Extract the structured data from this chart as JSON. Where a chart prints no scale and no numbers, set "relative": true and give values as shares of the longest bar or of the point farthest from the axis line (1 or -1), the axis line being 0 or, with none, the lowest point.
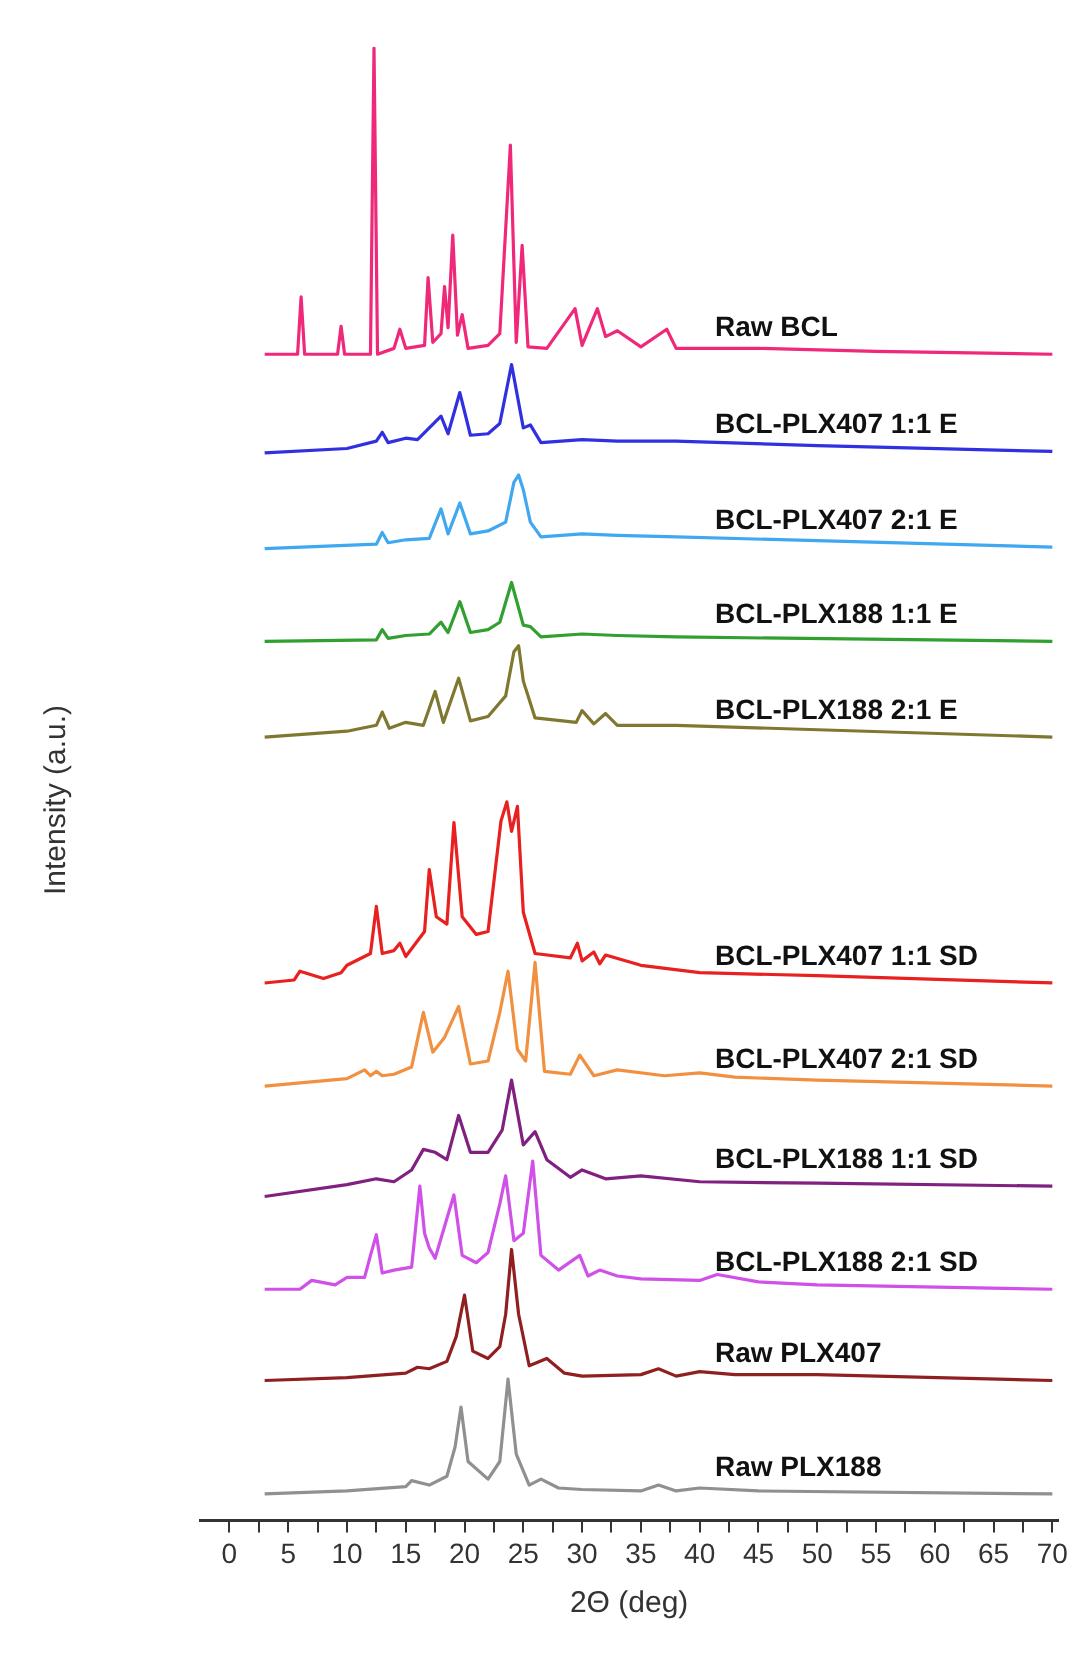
{
  "chart_data": {
    "type": "line",
    "relative": true,
    "xlabel": "2Θ (deg)",
    "ylabel": "Intensity (a.u.)",
    "xlim": [
      -2.5,
      70.5
    ],
    "xticks": [
      0,
      {
        "value": 2.5,
        "label": null
      },
      5,
      {
        "value": 7.5,
        "label": null
      },
      10,
      {
        "value": 12.5,
        "label": null
      },
      15,
      {
        "value": 17.5,
        "label": null
      },
      20,
      {
        "value": 22.5,
        "label": null
      },
      25,
      {
        "value": 27.5,
        "label": null
      },
      30,
      {
        "value": 32.5,
        "label": null
      },
      35,
      {
        "value": 37.5,
        "label": null
      },
      40,
      {
        "value": 42.5,
        "label": null
      },
      45,
      {
        "value": 47.5,
        "label": null
      },
      50,
      {
        "value": 52.5,
        "label": null
      },
      55,
      {
        "value": 57.5,
        "label": null
      },
      60,
      {
        "value": 62.5,
        "label": null
      },
      65,
      {
        "value": 67.5,
        "label": null
      },
      70
    ],
    "marker": "none",
    "line_style": "solid",
    "series": [
      {
        "name": "Raw BCL",
        "color": "#f0287a",
        "x": [
          3,
          5.8,
          6.1,
          6.4,
          9.2,
          9.5,
          9.8,
          12,
          12.3,
          12.6,
          14,
          14.5,
          15,
          16.6,
          16.9,
          17.3,
          18,
          18.3,
          18.6,
          19,
          19.4,
          19.8,
          20.3,
          22,
          23,
          23.9,
          24.4,
          24.9,
          25.4,
          27,
          29.4,
          30,
          31.3,
          32,
          33,
          35,
          37.2,
          38,
          42,
          45,
          55,
          70
        ],
        "values": [
          0.792,
          0.792,
          0.831,
          0.792,
          0.792,
          0.811,
          0.792,
          0.792,
          1.0,
          0.792,
          0.796,
          0.809,
          0.796,
          0.798,
          0.844,
          0.8,
          0.806,
          0.838,
          0.81,
          0.873,
          0.805,
          0.819,
          0.796,
          0.798,
          0.806,
          0.934,
          0.8,
          0.866,
          0.797,
          0.796,
          0.823,
          0.798,
          0.823,
          0.804,
          0.808,
          0.797,
          0.809,
          0.796,
          0.796,
          0.796,
          0.794,
          0.792
        ]
      },
      {
        "name": "BCL-PLX407 1:1 E",
        "color": "#3030e0",
        "x": [
          3,
          10,
          12.5,
          13,
          13.5,
          15,
          16,
          18,
          18.6,
          19.6,
          20.5,
          22,
          23,
          24,
          25,
          25.6,
          26.5,
          30,
          33,
          38,
          50,
          70
        ],
        "values": [
          0.725,
          0.728,
          0.733,
          0.739,
          0.732,
          0.735,
          0.734,
          0.75,
          0.738,
          0.766,
          0.737,
          0.738,
          0.745,
          0.785,
          0.742,
          0.744,
          0.732,
          0.734,
          0.733,
          0.733,
          0.73,
          0.726
        ]
      },
      {
        "name": "BCL-PLX407 2:1 E",
        "color": "#40a8f0",
        "x": [
          3,
          12.5,
          13,
          13.5,
          15,
          17,
          18,
          18.6,
          19.6,
          20.5,
          22,
          23.5,
          24.2,
          24.6,
          25,
          25.6,
          26.5,
          30,
          33,
          38,
          70
        ],
        "values": [
          0.66,
          0.663,
          0.671,
          0.664,
          0.666,
          0.667,
          0.687,
          0.67,
          0.691,
          0.67,
          0.672,
          0.678,
          0.705,
          0.71,
          0.7,
          0.678,
          0.668,
          0.67,
          0.669,
          0.668,
          0.661
        ]
      },
      {
        "name": "BCL-PLX188 1:1 E",
        "color": "#30a030",
        "x": [
          3,
          12.5,
          13,
          13.5,
          15,
          17,
          18,
          18.6,
          19.6,
          20.5,
          22,
          23,
          24,
          25,
          25.6,
          26.5,
          30,
          33,
          38,
          70
        ],
        "values": [
          0.597,
          0.598,
          0.605,
          0.599,
          0.601,
          0.602,
          0.61,
          0.603,
          0.624,
          0.603,
          0.605,
          0.61,
          0.637,
          0.608,
          0.607,
          0.6,
          0.602,
          0.601,
          0.6,
          0.597
        ]
      },
      {
        "name": "BCL-PLX188 2:1 E",
        "color": "#807830",
        "x": [
          3,
          10,
          12.5,
          13,
          13.6,
          15,
          16.5,
          17.5,
          18.2,
          19.5,
          20.5,
          22,
          23.5,
          24.2,
          24.6,
          25,
          25.4,
          26,
          29.5,
          30,
          31,
          32,
          33,
          38,
          70
        ],
        "values": [
          0.532,
          0.536,
          0.54,
          0.549,
          0.538,
          0.542,
          0.54,
          0.563,
          0.542,
          0.572,
          0.543,
          0.546,
          0.56,
          0.59,
          0.594,
          0.57,
          0.56,
          0.545,
          0.542,
          0.55,
          0.541,
          0.548,
          0.54,
          0.54,
          0.532
        ]
      },
      {
        "name": "BCL-PLX407 1:1 SD",
        "color": "#e82020",
        "x": [
          3,
          5.5,
          6,
          8,
          9.5,
          10,
          12,
          12.5,
          13,
          14,
          14.5,
          15,
          16.6,
          17,
          17.6,
          18.5,
          19.1,
          19.8,
          21,
          22,
          23.1,
          23.6,
          24,
          24.5,
          25,
          26,
          29,
          29.6,
          30,
          31,
          31.5,
          32,
          35,
          40,
          50,
          70
        ],
        "values": [
          0.365,
          0.367,
          0.373,
          0.368,
          0.372,
          0.377,
          0.385,
          0.417,
          0.385,
          0.387,
          0.392,
          0.383,
          0.4,
          0.442,
          0.41,
          0.405,
          0.474,
          0.41,
          0.398,
          0.4,
          0.475,
          0.488,
          0.468,
          0.485,
          0.413,
          0.385,
          0.382,
          0.392,
          0.38,
          0.386,
          0.378,
          0.384,
          0.377,
          0.372,
          0.37,
          0.365
        ]
      },
      {
        "name": "BCL-PLX407 2:1 SD",
        "color": "#f09040",
        "x": [
          3,
          10,
          11.5,
          12,
          12.5,
          13,
          14,
          15.5,
          16.5,
          17.3,
          18.3,
          19.5,
          20.5,
          22,
          23,
          23.7,
          24.5,
          25.2,
          26,
          26.8,
          29,
          29.8,
          31,
          33,
          37,
          40,
          43,
          50,
          70
        ],
        "values": [
          0.295,
          0.3,
          0.306,
          0.302,
          0.305,
          0.302,
          0.303,
          0.308,
          0.345,
          0.318,
          0.328,
          0.349,
          0.31,
          0.312,
          0.345,
          0.373,
          0.32,
          0.312,
          0.379,
          0.305,
          0.303,
          0.316,
          0.302,
          0.306,
          0.302,
          0.304,
          0.301,
          0.299,
          0.295
        ]
      },
      {
        "name": "BCL-PLX188 1:1 SD",
        "color": "#802080",
        "x": [
          3,
          10,
          12.5,
          14,
          15.5,
          16.5,
          17.5,
          18.5,
          19.5,
          20.5,
          22,
          23.2,
          24,
          25,
          26,
          27,
          29,
          30,
          32,
          35,
          40,
          50,
          70
        ],
        "values": [
          0.22,
          0.228,
          0.232,
          0.23,
          0.238,
          0.252,
          0.25,
          0.245,
          0.275,
          0.25,
          0.25,
          0.265,
          0.299,
          0.255,
          0.264,
          0.245,
          0.233,
          0.238,
          0.232,
          0.234,
          0.23,
          0.229,
          0.227
        ]
      },
      {
        "name": "BCL-PLX188 2:1 SD",
        "color": "#d050e8",
        "x": [
          3,
          6,
          7,
          9,
          10,
          11.5,
          12,
          12.5,
          13,
          14,
          15.5,
          16.2,
          16.6,
          17,
          17.5,
          18.5,
          19.1,
          19.8,
          21,
          22,
          23,
          23.5,
          24.2,
          25,
          25.8,
          26.5,
          28,
          29.8,
          30.5,
          31.5,
          33,
          35,
          40,
          41.5,
          45,
          50,
          70
        ],
        "values": [
          0.157,
          0.157,
          0.163,
          0.16,
          0.165,
          0.165,
          0.18,
          0.194,
          0.168,
          0.17,
          0.172,
          0.227,
          0.195,
          0.185,
          0.178,
          0.205,
          0.221,
          0.18,
          0.175,
          0.182,
          0.215,
          0.234,
          0.19,
          0.195,
          0.244,
          0.18,
          0.17,
          0.18,
          0.166,
          0.17,
          0.166,
          0.164,
          0.163,
          0.167,
          0.162,
          0.16,
          0.157
        ]
      },
      {
        "name": "Raw PLX407",
        "color": "#902020",
        "x": [
          3,
          10,
          15,
          16,
          17,
          18.5,
          19.3,
          20,
          20.7,
          22,
          23,
          23.5,
          24,
          24.6,
          25.5,
          27,
          28.5,
          30,
          35,
          36.5,
          38,
          40,
          43,
          50,
          70
        ],
        "values": [
          0.095,
          0.097,
          0.1,
          0.104,
          0.103,
          0.108,
          0.125,
          0.153,
          0.115,
          0.11,
          0.118,
          0.14,
          0.184,
          0.14,
          0.105,
          0.11,
          0.1,
          0.098,
          0.099,
          0.103,
          0.098,
          0.101,
          0.099,
          0.099,
          0.095
        ]
      },
      {
        "name": "Raw PLX188",
        "color": "#909090",
        "x": [
          3,
          10,
          15,
          15.5,
          17,
          18.5,
          19.2,
          19.7,
          20.3,
          22,
          23,
          23.7,
          24.4,
          25.5,
          26.5,
          28,
          30,
          35,
          36.5,
          38,
          40,
          45,
          70
        ],
        "values": [
          0.018,
          0.02,
          0.023,
          0.027,
          0.024,
          0.03,
          0.05,
          0.077,
          0.04,
          0.028,
          0.04,
          0.096,
          0.045,
          0.024,
          0.028,
          0.022,
          0.021,
          0.02,
          0.024,
          0.02,
          0.022,
          0.02,
          0.018
        ]
      }
    ]
  }
}
